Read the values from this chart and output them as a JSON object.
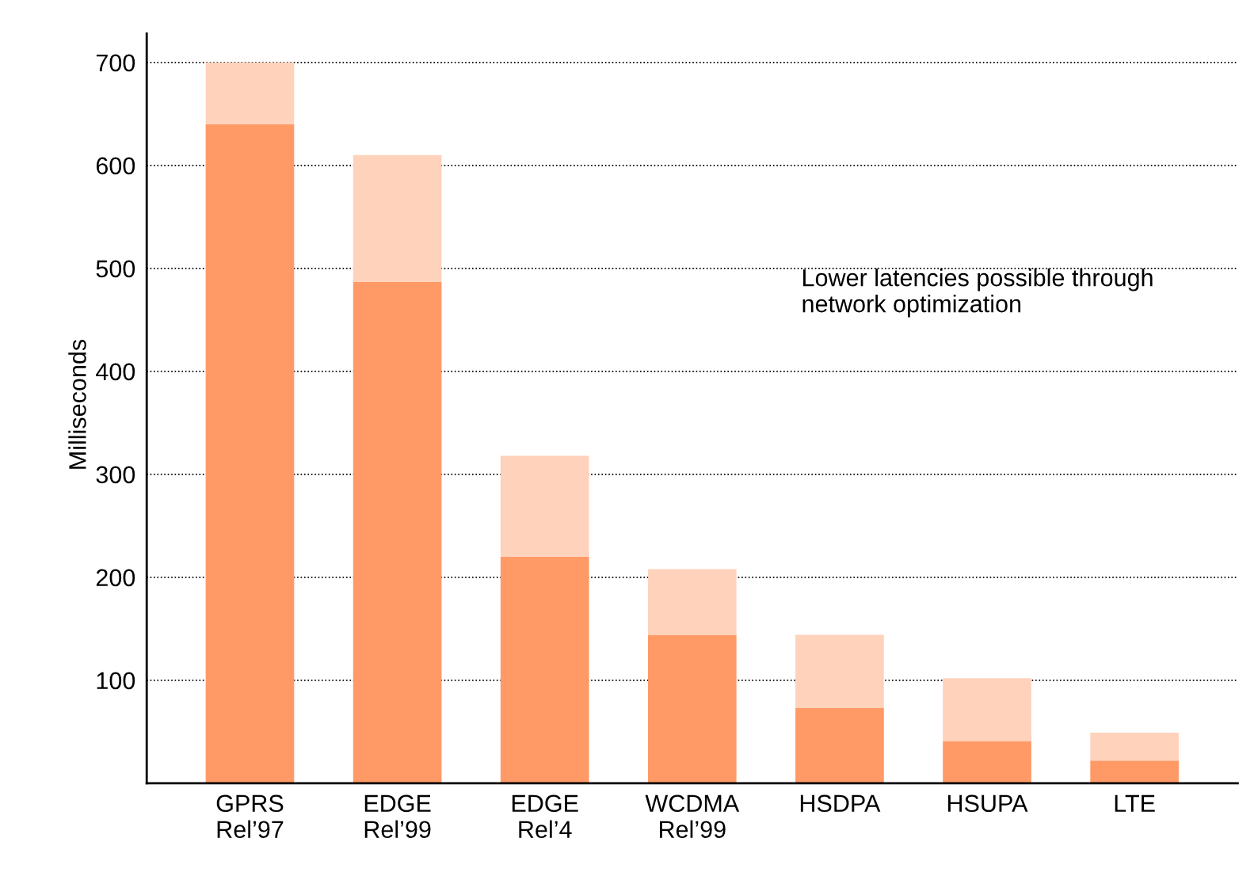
{
  "chart_data": {
    "type": "bar",
    "stacked": true,
    "ylabel": "Milliseconds",
    "categories": [
      "GPRS\nRel’97",
      "EDGE\nRel’99",
      "EDGE\nRel’4",
      "WCDMA\nRel’99",
      "HSDPA",
      "HSUPA",
      "LTE"
    ],
    "series": [
      {
        "color": "#ff9966",
        "values": [
          640,
          487,
          220,
          144,
          73,
          41,
          22
        ]
      },
      {
        "color": "#ffd2bc",
        "values": [
          60,
          123,
          98,
          64,
          71,
          61,
          27
        ]
      }
    ],
    "ylim": [
      0,
      700
    ],
    "yticks": [
      100,
      200,
      300,
      400,
      500,
      600,
      700
    ],
    "grid": "y",
    "annotations": [
      "Lower latencies possible through\nnetwork optimization"
    ]
  }
}
